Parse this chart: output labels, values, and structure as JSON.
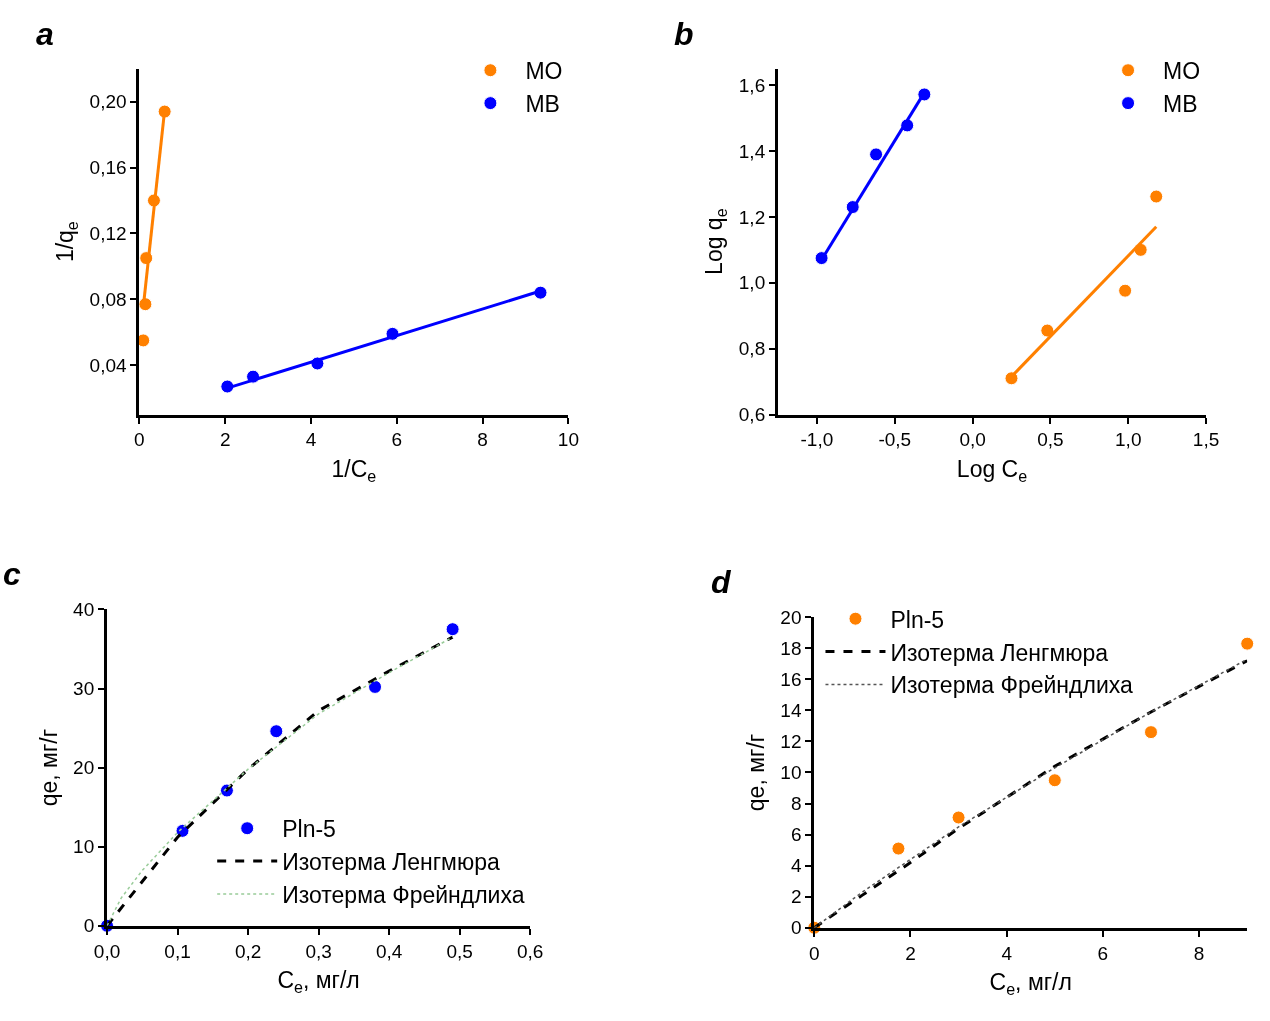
{
  "chart_data": [
    {
      "type": "scatter",
      "title": "a",
      "xlabel": "1/C$_{e}$",
      "ylabel": "1/q$_{e}$",
      "xlim": [
        0,
        10
      ],
      "xticks": [
        0,
        2,
        4,
        6,
        8,
        10
      ],
      "ylim": [
        0.01,
        0.22
      ],
      "yticks": [
        {
          "value": 0.04,
          "label": "0,04"
        },
        {
          "value": 0.08,
          "label": "0,08"
        },
        {
          "value": 0.12,
          "label": "0,12"
        },
        {
          "value": 0.16,
          "label": "0,16"
        },
        {
          "value": 0.2,
          "label": "0,20"
        }
      ],
      "legend": "top right",
      "grid": false,
      "series": [
        {
          "name": "MO",
          "marker": "circle",
          "color": "#ff8000",
          "x": [
            0.09,
            0.14,
            0.16,
            0.34,
            0.59
          ],
          "values": [
            0.055,
            0.077,
            0.105,
            0.14,
            0.194
          ]
        },
        {
          "name": "MB",
          "marker": "circle",
          "color": "#0000ff",
          "x": [
            2.05,
            2.65,
            4.15,
            5.9,
            9.35
          ],
          "values": [
            0.027,
            0.033,
            0.041,
            0.059,
            0.084
          ]
        },
        {
          "type": "line",
          "marker": "none",
          "color": "#ff8000",
          "x": [
            0.09,
            0.59
          ],
          "values": [
            0.075,
            0.195
          ]
        },
        {
          "type": "line",
          "marker": "none",
          "color": "#0000ff",
          "x": [
            2.05,
            9.35
          ],
          "values": [
            0.026,
            0.085
          ]
        }
      ]
    },
    {
      "type": "scatter",
      "title": "b",
      "xlabel": "Log C$_{e}$",
      "ylabel": "Log q$_{e}$",
      "xlim": [
        -1.25,
        1.5
      ],
      "xticks": [
        {
          "value": -1.0,
          "label": "-1,0"
        },
        {
          "value": -0.5,
          "label": "-0,5"
        },
        {
          "value": 0.0,
          "label": "0,0"
        },
        {
          "value": 0.5,
          "label": "0,5"
        },
        {
          "value": 1.0,
          "label": "1,0"
        },
        {
          "value": 1.5,
          "label": "1,5"
        }
      ],
      "ylim": [
        0.6,
        1.65
      ],
      "yticks": [
        {
          "value": 0.6,
          "label": "0,6"
        },
        {
          "value": 0.8,
          "label": "0,8"
        },
        {
          "value": 1.0,
          "label": "1,0"
        },
        {
          "value": 1.2,
          "label": "1,2"
        },
        {
          "value": 1.4,
          "label": "1,4"
        },
        {
          "value": 1.6,
          "label": "1,6"
        }
      ],
      "legend": "top right",
      "grid": false,
      "series": [
        {
          "name": "MO",
          "marker": "circle",
          "color": "#ff8000",
          "x": [
            0.25,
            0.48,
            0.98,
            1.08,
            1.18
          ],
          "values": [
            0.71,
            0.855,
            0.976,
            1.1,
            1.262
          ]
        },
        {
          "name": "MB",
          "marker": "circle",
          "color": "#0000ff",
          "x": [
            -0.97,
            -0.77,
            -0.62,
            -0.42,
            -0.31
          ],
          "values": [
            1.075,
            1.23,
            1.39,
            1.478,
            1.572
          ]
        },
        {
          "type": "line",
          "marker": "none",
          "color": "#ff8000",
          "x": [
            0.25,
            1.18
          ],
          "values": [
            0.715,
            1.17
          ]
        },
        {
          "type": "line",
          "marker": "none",
          "color": "#0000ff",
          "x": [
            -0.97,
            -0.32
          ],
          "values": [
            1.07,
            1.57
          ]
        }
      ]
    },
    {
      "type": "scatter",
      "title": "c",
      "xlabel": "C$_{e}$, мг/л",
      "ylabel": "qe, мг/г",
      "xlim": [
        0,
        0.6
      ],
      "xticks": [
        {
          "value": 0,
          "label": "0,0"
        },
        {
          "value": 0.1,
          "label": "0,1"
        },
        {
          "value": 0.2,
          "label": "0,2"
        },
        {
          "value": 0.3,
          "label": "0,3"
        },
        {
          "value": 0.4,
          "label": "0,4"
        },
        {
          "value": 0.5,
          "label": "0,5"
        },
        {
          "value": 0.6,
          "label": "0,6"
        }
      ],
      "ylim": [
        0,
        40
      ],
      "yticks": [
        0,
        10,
        20,
        30,
        40
      ],
      "legend": "bottom right",
      "grid": false,
      "series": [
        {
          "name": "Pln-5",
          "marker": "circle",
          "color": "#0000ff",
          "x": [
            0,
            0.107,
            0.17,
            0.24,
            0.38,
            0.49
          ],
          "values": [
            0,
            12,
            17.1,
            24.6,
            30.2,
            37.5
          ]
        },
        {
          "name": "Изотерма Ленгмюра",
          "type": "line",
          "marker": "none",
          "line_style": "dashed",
          "color": "#000000",
          "x": [
            0,
            0.1,
            0.2,
            0.3,
            0.4,
            0.49
          ],
          "values": [
            0,
            11.2,
            19.8,
            27.2,
            32.2,
            36.5
          ]
        },
        {
          "name": "Изотерма Фрейндлиха",
          "type": "line",
          "marker": "none",
          "line_style": "dotted",
          "color": "#99cc99",
          "x": [
            0,
            0.02,
            0.05,
            0.1,
            0.2,
            0.3,
            0.4,
            0.49
          ],
          "values": [
            0,
            3.5,
            7,
            11.8,
            19.8,
            26.8,
            32,
            36.5
          ]
        }
      ]
    },
    {
      "type": "scatter",
      "title": "d",
      "xlabel": "C$_{e}$, мг/л",
      "ylabel": "qe, мг/г",
      "xlim": [
        0,
        9
      ],
      "xticks": [
        0,
        2,
        4,
        6,
        8
      ],
      "ylim": [
        0,
        20
      ],
      "yticks": [
        0,
        2,
        4,
        6,
        8,
        10,
        12,
        14,
        16,
        18,
        20
      ],
      "legend": "top left",
      "grid": false,
      "series": [
        {
          "name": "Pln-5",
          "marker": "circle",
          "color": "#ff8000",
          "x": [
            0,
            1.75,
            3,
            5,
            7,
            9
          ],
          "values": [
            0,
            5.1,
            7.1,
            9.5,
            12.6,
            18.3
          ]
        },
        {
          "name": "Изотерма Ленгмюра",
          "type": "line",
          "marker": "none",
          "line_style": "dashed",
          "color": "#000000",
          "x": [
            0,
            1,
            2,
            3,
            5,
            7,
            9
          ],
          "values": [
            0,
            2.1,
            4.2,
            6.4,
            10.4,
            13.9,
            17.2
          ]
        },
        {
          "name": "Изотерма Фрейндлиха",
          "type": "line",
          "marker": "none",
          "line_style": "dotted",
          "color": "#555555",
          "x": [
            0,
            1,
            2,
            3,
            5,
            7,
            9
          ],
          "values": [
            0,
            2.3,
            4.4,
            6.5,
            10.3,
            13.9,
            17.3
          ]
        }
      ]
    }
  ]
}
